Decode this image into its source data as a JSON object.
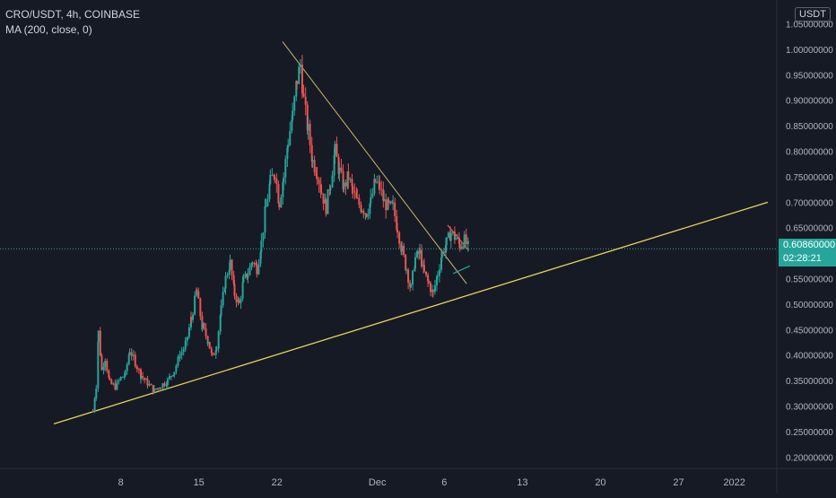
{
  "legend": {
    "symbol_line": "CRO/USDT, 4h, COINBASE",
    "indicator_line": "MA (200, close, 0)"
  },
  "currency_badge": "USDT",
  "last_price": {
    "value": "0.60860000",
    "countdown": "02:28:21"
  },
  "colors": {
    "background": "#161a25",
    "up": "#26a69a",
    "down": "#ef5350",
    "trendline": "#c9b86a",
    "support_line": "#e6d35c",
    "axis_text": "#b2b5be",
    "axis_line": "#2a2e39"
  },
  "chart_data": {
    "type": "candlestick",
    "xaxis": {
      "ticks": [
        {
          "label": "8",
          "day": 8
        },
        {
          "label": "15",
          "day": 15
        },
        {
          "label": "22",
          "day": 22
        },
        {
          "label": "Dec",
          "day": 31
        },
        {
          "label": "6",
          "day": 37
        },
        {
          "label": "13",
          "day": 44
        },
        {
          "label": "20",
          "day": 51
        },
        {
          "label": "27",
          "day": 58
        },
        {
          "label": "2022",
          "day": 63
        }
      ],
      "range": [
        0,
        66
      ]
    },
    "yaxis": {
      "ticks": [
        "1.05000000",
        "1.00000000",
        "0.95000000",
        "0.90000000",
        "0.85000000",
        "0.80000000",
        "0.75000000",
        "0.70000000",
        "0.65000000",
        "0.60000000",
        "0.55000000",
        "0.50000000",
        "0.45000000",
        "0.40000000",
        "0.35000000",
        "0.30000000",
        "0.25000000",
        "0.20000000"
      ],
      "range": [
        0.19,
        1.065
      ],
      "side": "right"
    },
    "path": [
      [
        5.5,
        0.29
      ],
      [
        5.8,
        0.34
      ],
      [
        6.0,
        0.445
      ],
      [
        6.3,
        0.37
      ],
      [
        6.6,
        0.395
      ],
      [
        7.0,
        0.345
      ],
      [
        7.5,
        0.338
      ],
      [
        8.0,
        0.355
      ],
      [
        8.4,
        0.362
      ],
      [
        8.8,
        0.41
      ],
      [
        9.3,
        0.385
      ],
      [
        9.8,
        0.36
      ],
      [
        10.4,
        0.345
      ],
      [
        11.0,
        0.33
      ],
      [
        11.6,
        0.34
      ],
      [
        12.2,
        0.35
      ],
      [
        12.8,
        0.37
      ],
      [
        13.3,
        0.4
      ],
      [
        13.8,
        0.42
      ],
      [
        14.3,
        0.47
      ],
      [
        14.8,
        0.525
      ],
      [
        15.3,
        0.455
      ],
      [
        15.8,
        0.43
      ],
      [
        16.2,
        0.395
      ],
      [
        16.6,
        0.42
      ],
      [
        17.0,
        0.49
      ],
      [
        17.4,
        0.55
      ],
      [
        17.8,
        0.58
      ],
      [
        18.2,
        0.52
      ],
      [
        18.6,
        0.5
      ],
      [
        19.0,
        0.545
      ],
      [
        19.4,
        0.56
      ],
      [
        19.8,
        0.585
      ],
      [
        20.2,
        0.57
      ],
      [
        20.6,
        0.62
      ],
      [
        21.0,
        0.69
      ],
      [
        21.4,
        0.74
      ],
      [
        21.8,
        0.76
      ],
      [
        22.2,
        0.7
      ],
      [
        22.6,
        0.75
      ],
      [
        23.0,
        0.82
      ],
      [
        23.4,
        0.87
      ],
      [
        23.8,
        0.94
      ],
      [
        24.1,
        0.97
      ],
      [
        24.4,
        0.9
      ],
      [
        24.8,
        0.84
      ],
      [
        25.2,
        0.78
      ],
      [
        25.6,
        0.76
      ],
      [
        26.0,
        0.72
      ],
      [
        26.4,
        0.69
      ],
      [
        26.8,
        0.74
      ],
      [
        27.2,
        0.8
      ],
      [
        27.6,
        0.76
      ],
      [
        28.0,
        0.73
      ],
      [
        28.4,
        0.75
      ],
      [
        28.8,
        0.72
      ],
      [
        29.2,
        0.7
      ],
      [
        29.6,
        0.69
      ],
      [
        30.0,
        0.68
      ],
      [
        30.4,
        0.7
      ],
      [
        30.8,
        0.74
      ],
      [
        31.2,
        0.73
      ],
      [
        31.6,
        0.7
      ],
      [
        32.0,
        0.69
      ],
      [
        32.4,
        0.69
      ],
      [
        32.8,
        0.65
      ],
      [
        33.2,
        0.605
      ],
      [
        33.6,
        0.57
      ],
      [
        34.0,
        0.53
      ],
      [
        34.4,
        0.59
      ],
      [
        34.8,
        0.6
      ],
      [
        35.2,
        0.56
      ],
      [
        35.6,
        0.54
      ],
      [
        36.0,
        0.52
      ],
      [
        36.4,
        0.56
      ],
      [
        36.8,
        0.6
      ],
      [
        37.2,
        0.62
      ],
      [
        37.6,
        0.64
      ],
      [
        38.0,
        0.63
      ],
      [
        38.4,
        0.615
      ],
      [
        38.8,
        0.625
      ],
      [
        39.2,
        0.609
      ]
    ],
    "trendlines": [
      {
        "name": "descending-resistance",
        "from": [
          22.5,
          1.015
        ],
        "to": [
          39.0,
          0.54
        ]
      },
      {
        "name": "ascending-support",
        "from": [
          2.0,
          0.265
        ],
        "to": [
          66.0,
          0.7
        ]
      },
      {
        "name": "small-descending",
        "from": [
          37.3,
          0.655
        ],
        "to": [
          39.2,
          0.605
        ]
      },
      {
        "name": "small-ascending",
        "from": [
          37.8,
          0.56
        ],
        "to": [
          39.3,
          0.575
        ]
      }
    ]
  }
}
